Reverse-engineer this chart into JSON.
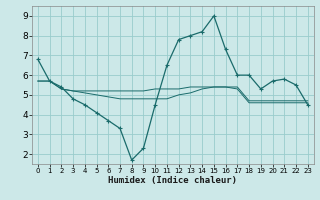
{
  "title": "",
  "xlabel": "Humidex (Indice chaleur)",
  "bg_color": "#cce8e8",
  "grid_color": "#99cccc",
  "line_color": "#1a6b6b",
  "xlim": [
    -0.5,
    23.5
  ],
  "ylim": [
    1.5,
    9.5
  ],
  "xticks": [
    0,
    1,
    2,
    3,
    4,
    5,
    6,
    7,
    8,
    9,
    10,
    11,
    12,
    13,
    14,
    15,
    16,
    17,
    18,
    19,
    20,
    21,
    22,
    23
  ],
  "yticks": [
    2,
    3,
    4,
    5,
    6,
    7,
    8,
    9
  ],
  "line1_x": [
    0,
    1,
    2,
    3,
    4,
    5,
    6,
    7,
    8,
    9,
    10,
    11,
    12,
    13,
    14,
    15,
    16,
    17,
    18,
    19,
    20,
    21,
    22,
    23
  ],
  "line1_y": [
    6.8,
    5.7,
    5.4,
    4.8,
    4.5,
    4.1,
    3.7,
    3.3,
    1.7,
    2.3,
    4.5,
    6.5,
    7.8,
    8.0,
    8.2,
    9.0,
    7.3,
    6.0,
    6.0,
    5.3,
    5.7,
    5.8,
    5.5,
    4.5
  ],
  "line2_x": [
    0,
    1,
    2,
    3,
    4,
    5,
    6,
    7,
    8,
    9,
    10,
    11,
    12,
    13,
    14,
    15,
    16,
    17,
    18,
    19,
    20,
    21,
    22,
    23
  ],
  "line2_y": [
    5.7,
    5.7,
    5.3,
    5.2,
    5.2,
    5.2,
    5.2,
    5.2,
    5.2,
    5.2,
    5.3,
    5.3,
    5.3,
    5.4,
    5.4,
    5.4,
    5.4,
    5.4,
    4.7,
    4.7,
    4.7,
    4.7,
    4.7,
    4.7
  ],
  "line3_x": [
    0,
    1,
    2,
    3,
    4,
    5,
    6,
    7,
    8,
    9,
    10,
    11,
    12,
    13,
    14,
    15,
    16,
    17,
    18,
    19,
    20,
    21,
    22,
    23
  ],
  "line3_y": [
    5.7,
    5.7,
    5.3,
    5.2,
    5.1,
    5.0,
    4.9,
    4.8,
    4.8,
    4.8,
    4.8,
    4.8,
    5.0,
    5.1,
    5.3,
    5.4,
    5.4,
    5.3,
    4.6,
    4.6,
    4.6,
    4.6,
    4.6,
    4.6
  ]
}
